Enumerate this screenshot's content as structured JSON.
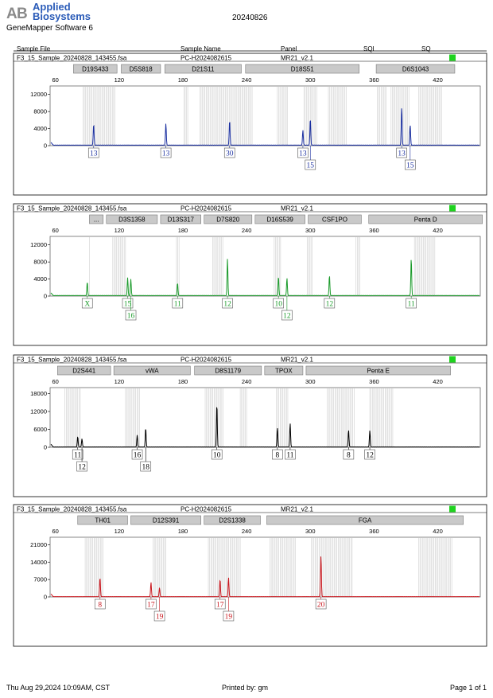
{
  "header": {
    "brand_line1": "Applied",
    "brand_line2": "Biosystems",
    "software": "GeneMapper Software 6",
    "date": "20240826",
    "columns": [
      "Sample File",
      "Sample Name",
      "Panel",
      "SQI",
      "SQ"
    ]
  },
  "footer": {
    "printed_at": "Thu Aug 29,2024 10:09AM, CST",
    "printed_by": "Printed by: gm",
    "page": "Page 1 of 1"
  },
  "colors": {
    "blue": "#1a2fa0",
    "green": "#1a9a2a",
    "black": "#000000",
    "red": "#c8161d",
    "status_ok": "#1fd31f"
  },
  "chart_data": [
    {
      "type": "line",
      "sample_file": "F3_15_Sample_20240828_143455.fsa",
      "sample_name": "PC-H2024082615",
      "panel": "MR21_v2.1",
      "color": "#1a2fa0",
      "x_ticks": [
        60,
        120,
        180,
        240,
        300,
        360,
        420
      ],
      "xlim": [
        55,
        460
      ],
      "y_ticks": [
        0,
        4000,
        8000,
        12000
      ],
      "ylim": [
        0,
        14000
      ],
      "markers": [
        {
          "name": "D19S433",
          "start": 77,
          "end": 118
        },
        {
          "name": "D5S818",
          "start": 122,
          "end": 159
        },
        {
          "name": "D21S11",
          "start": 163,
          "end": 235
        },
        {
          "name": "D18S51",
          "start": 239,
          "end": 346
        },
        {
          "name": "D6S1043",
          "start": 362,
          "end": 436
        }
      ],
      "bins": [
        [
          86,
          117
        ],
        [
          181,
          185
        ],
        [
          196,
          246
        ],
        [
          269,
          279
        ],
        [
          294,
          306
        ],
        [
          317,
          334
        ],
        [
          363,
          372
        ],
        [
          376,
          393
        ],
        [
          402,
          424
        ]
      ],
      "peaks": [
        {
          "x": 96,
          "height": 5000,
          "label": "13",
          "row": 0
        },
        {
          "x": 164,
          "height": 5100,
          "label": "13",
          "row": 0
        },
        {
          "x": 224,
          "height": 5900,
          "label": "30",
          "row": 0
        },
        {
          "x": 293,
          "height": 3500,
          "label": "13",
          "row": 0
        },
        {
          "x": 300,
          "height": 6300,
          "label": "15",
          "row": 1
        },
        {
          "x": 386,
          "height": 9000,
          "label": "13",
          "row": 0
        },
        {
          "x": 394,
          "height": 4800,
          "label": "15",
          "row": 1
        }
      ]
    },
    {
      "type": "line",
      "sample_file": "F3_15_Sample_20240828_143455.fsa",
      "sample_name": "PC-H2024082615",
      "panel": "MR21_v2.1",
      "color": "#1a9a2a",
      "x_ticks": [
        60,
        120,
        180,
        240,
        300,
        360,
        420
      ],
      "xlim": [
        55,
        460
      ],
      "y_ticks": [
        0,
        4000,
        8000,
        12000
      ],
      "ylim": [
        0,
        14000
      ],
      "markers": [
        {
          "name": "...",
          "start": 92,
          "end": 105
        },
        {
          "name": "D3S1358",
          "start": 108,
          "end": 156
        },
        {
          "name": "D13S317",
          "start": 159,
          "end": 197
        },
        {
          "name": "D7S820",
          "start": 200,
          "end": 245
        },
        {
          "name": "D16S539",
          "start": 248,
          "end": 295
        },
        {
          "name": "CSF1PO",
          "start": 298,
          "end": 348
        },
        {
          "name": "Penta D",
          "start": 355,
          "end": 462
        }
      ],
      "bins": [
        [
          92,
          93
        ],
        [
          114,
          127
        ],
        [
          174,
          177
        ],
        [
          208,
          218
        ],
        [
          266,
          273
        ],
        [
          297,
          302
        ],
        [
          343,
          347
        ],
        [
          398,
          418
        ]
      ],
      "peaks": [
        {
          "x": 90,
          "height": 3200,
          "label": "X",
          "row": 0
        },
        {
          "x": 128,
          "height": 4200,
          "label": "15",
          "row": 0
        },
        {
          "x": 131,
          "height": 3900,
          "label": "16",
          "row": 1
        },
        {
          "x": 175,
          "height": 3000,
          "label": "11",
          "row": 0
        },
        {
          "x": 222,
          "height": 8700,
          "label": "12",
          "row": 0
        },
        {
          "x": 270,
          "height": 4500,
          "label": "10",
          "row": 0
        },
        {
          "x": 278,
          "height": 4100,
          "label": "12",
          "row": 1
        },
        {
          "x": 318,
          "height": 4800,
          "label": "12",
          "row": 0
        },
        {
          "x": 395,
          "height": 8800,
          "label": "11",
          "row": 0
        }
      ]
    },
    {
      "type": "line",
      "sample_file": "F3_15_Sample_20240828_143455.fsa",
      "sample_name": "PC-H2024082615",
      "panel": "MR21_v2.1",
      "color": "#000000",
      "x_ticks": [
        60,
        120,
        180,
        240,
        300,
        360,
        420
      ],
      "xlim": [
        55,
        460
      ],
      "y_ticks": [
        0,
        6000,
        12000,
        18000
      ],
      "ylim": [
        0,
        20000
      ],
      "markers": [
        {
          "name": "D2S441",
          "start": 62,
          "end": 112
        },
        {
          "name": "vWA",
          "start": 115,
          "end": 187
        },
        {
          "name": "D8S1179",
          "start": 191,
          "end": 254
        },
        {
          "name": "TPOX",
          "start": 257,
          "end": 293
        },
        {
          "name": "Penta E",
          "start": 296,
          "end": 432
        }
      ],
      "bins": [
        [
          69,
          84
        ],
        [
          126,
          140
        ],
        [
          201,
          218
        ],
        [
          234,
          240
        ],
        [
          268,
          279
        ],
        [
          316,
          342
        ],
        [
          356,
          378
        ]
      ],
      "peaks": [
        {
          "x": 81,
          "height": 3500,
          "label": "11",
          "row": 0
        },
        {
          "x": 85,
          "height": 2800,
          "label": "12",
          "row": 1
        },
        {
          "x": 137,
          "height": 4000,
          "label": "16",
          "row": 0
        },
        {
          "x": 145,
          "height": 6400,
          "label": "18",
          "row": 1
        },
        {
          "x": 212,
          "height": 14500,
          "label": "10",
          "row": 0
        },
        {
          "x": 269,
          "height": 6500,
          "label": "8",
          "row": 0
        },
        {
          "x": 281,
          "height": 8000,
          "label": "11",
          "row": 0
        },
        {
          "x": 336,
          "height": 5700,
          "label": "8",
          "row": 0
        },
        {
          "x": 356,
          "height": 5500,
          "label": "12",
          "row": 0
        }
      ]
    },
    {
      "type": "line",
      "sample_file": "F3_15_Sample_20240828_143455.fsa",
      "sample_name": "PC-H2024082615",
      "panel": "MR21_v2.1",
      "color": "#c8161d",
      "x_ticks": [
        60,
        120,
        180,
        240,
        300,
        360,
        420
      ],
      "xlim": [
        55,
        460
      ],
      "y_ticks": [
        0,
        7000,
        14000,
        21000
      ],
      "ylim": [
        0,
        24000
      ],
      "markers": [
        {
          "name": "TH01",
          "start": 81,
          "end": 128
        },
        {
          "name": "D12S391",
          "start": 131,
          "end": 197
        },
        {
          "name": "D2S1338",
          "start": 200,
          "end": 253
        },
        {
          "name": "FGA",
          "start": 259,
          "end": 444
        }
      ],
      "bins": [
        [
          88,
          106
        ],
        [
          152,
          165
        ],
        [
          204,
          234
        ],
        [
          262,
          287
        ],
        [
          301,
          340
        ],
        [
          402,
          434
        ]
      ],
      "peaks": [
        {
          "x": 102,
          "height": 7800,
          "label": "8",
          "row": 0
        },
        {
          "x": 150,
          "height": 5800,
          "label": "17",
          "row": 0
        },
        {
          "x": 158,
          "height": 3600,
          "label": "19",
          "row": 1
        },
        {
          "x": 215,
          "height": 7000,
          "label": "17",
          "row": 0
        },
        {
          "x": 223,
          "height": 7700,
          "label": "19",
          "row": 1
        },
        {
          "x": 310,
          "height": 16600,
          "label": "20",
          "row": 0
        }
      ]
    }
  ]
}
